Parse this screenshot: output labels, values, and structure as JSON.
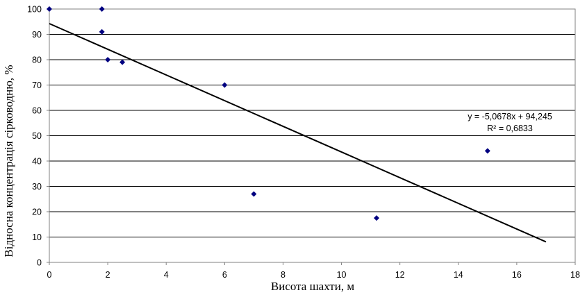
{
  "chart_data": {
    "type": "scatter",
    "title": "",
    "xlabel": "Висота шахти, м",
    "ylabel": "Відносна концентрація сірководню, %",
    "xlim": [
      0,
      18
    ],
    "ylim": [
      0,
      100
    ],
    "xticks": [
      0,
      2,
      4,
      6,
      8,
      10,
      12,
      14,
      16,
      18
    ],
    "yticks": [
      0,
      10,
      20,
      30,
      40,
      50,
      60,
      70,
      80,
      90,
      100
    ],
    "grid": "horizontal",
    "legend": "none",
    "marker_color": "#000080",
    "series": [
      {
        "points": [
          {
            "x": 0,
            "y": 100
          },
          {
            "x": 1.8,
            "y": 100
          },
          {
            "x": 1.8,
            "y": 91
          },
          {
            "x": 2,
            "y": 80
          },
          {
            "x": 2.5,
            "y": 79
          },
          {
            "x": 6,
            "y": 70
          },
          {
            "x": 7,
            "y": 27
          },
          {
            "x": 11.2,
            "y": 17.5
          },
          {
            "x": 15,
            "y": 44
          }
        ]
      }
    ],
    "trendline": {
      "type": "linear",
      "slope": -5.0678,
      "intercept": 94.245,
      "x_range": [
        0,
        17
      ],
      "color": "#000000"
    },
    "annotations": {
      "equation": "y = -5,0678x + 94,245",
      "r_squared": "R² = 0,6833"
    }
  }
}
